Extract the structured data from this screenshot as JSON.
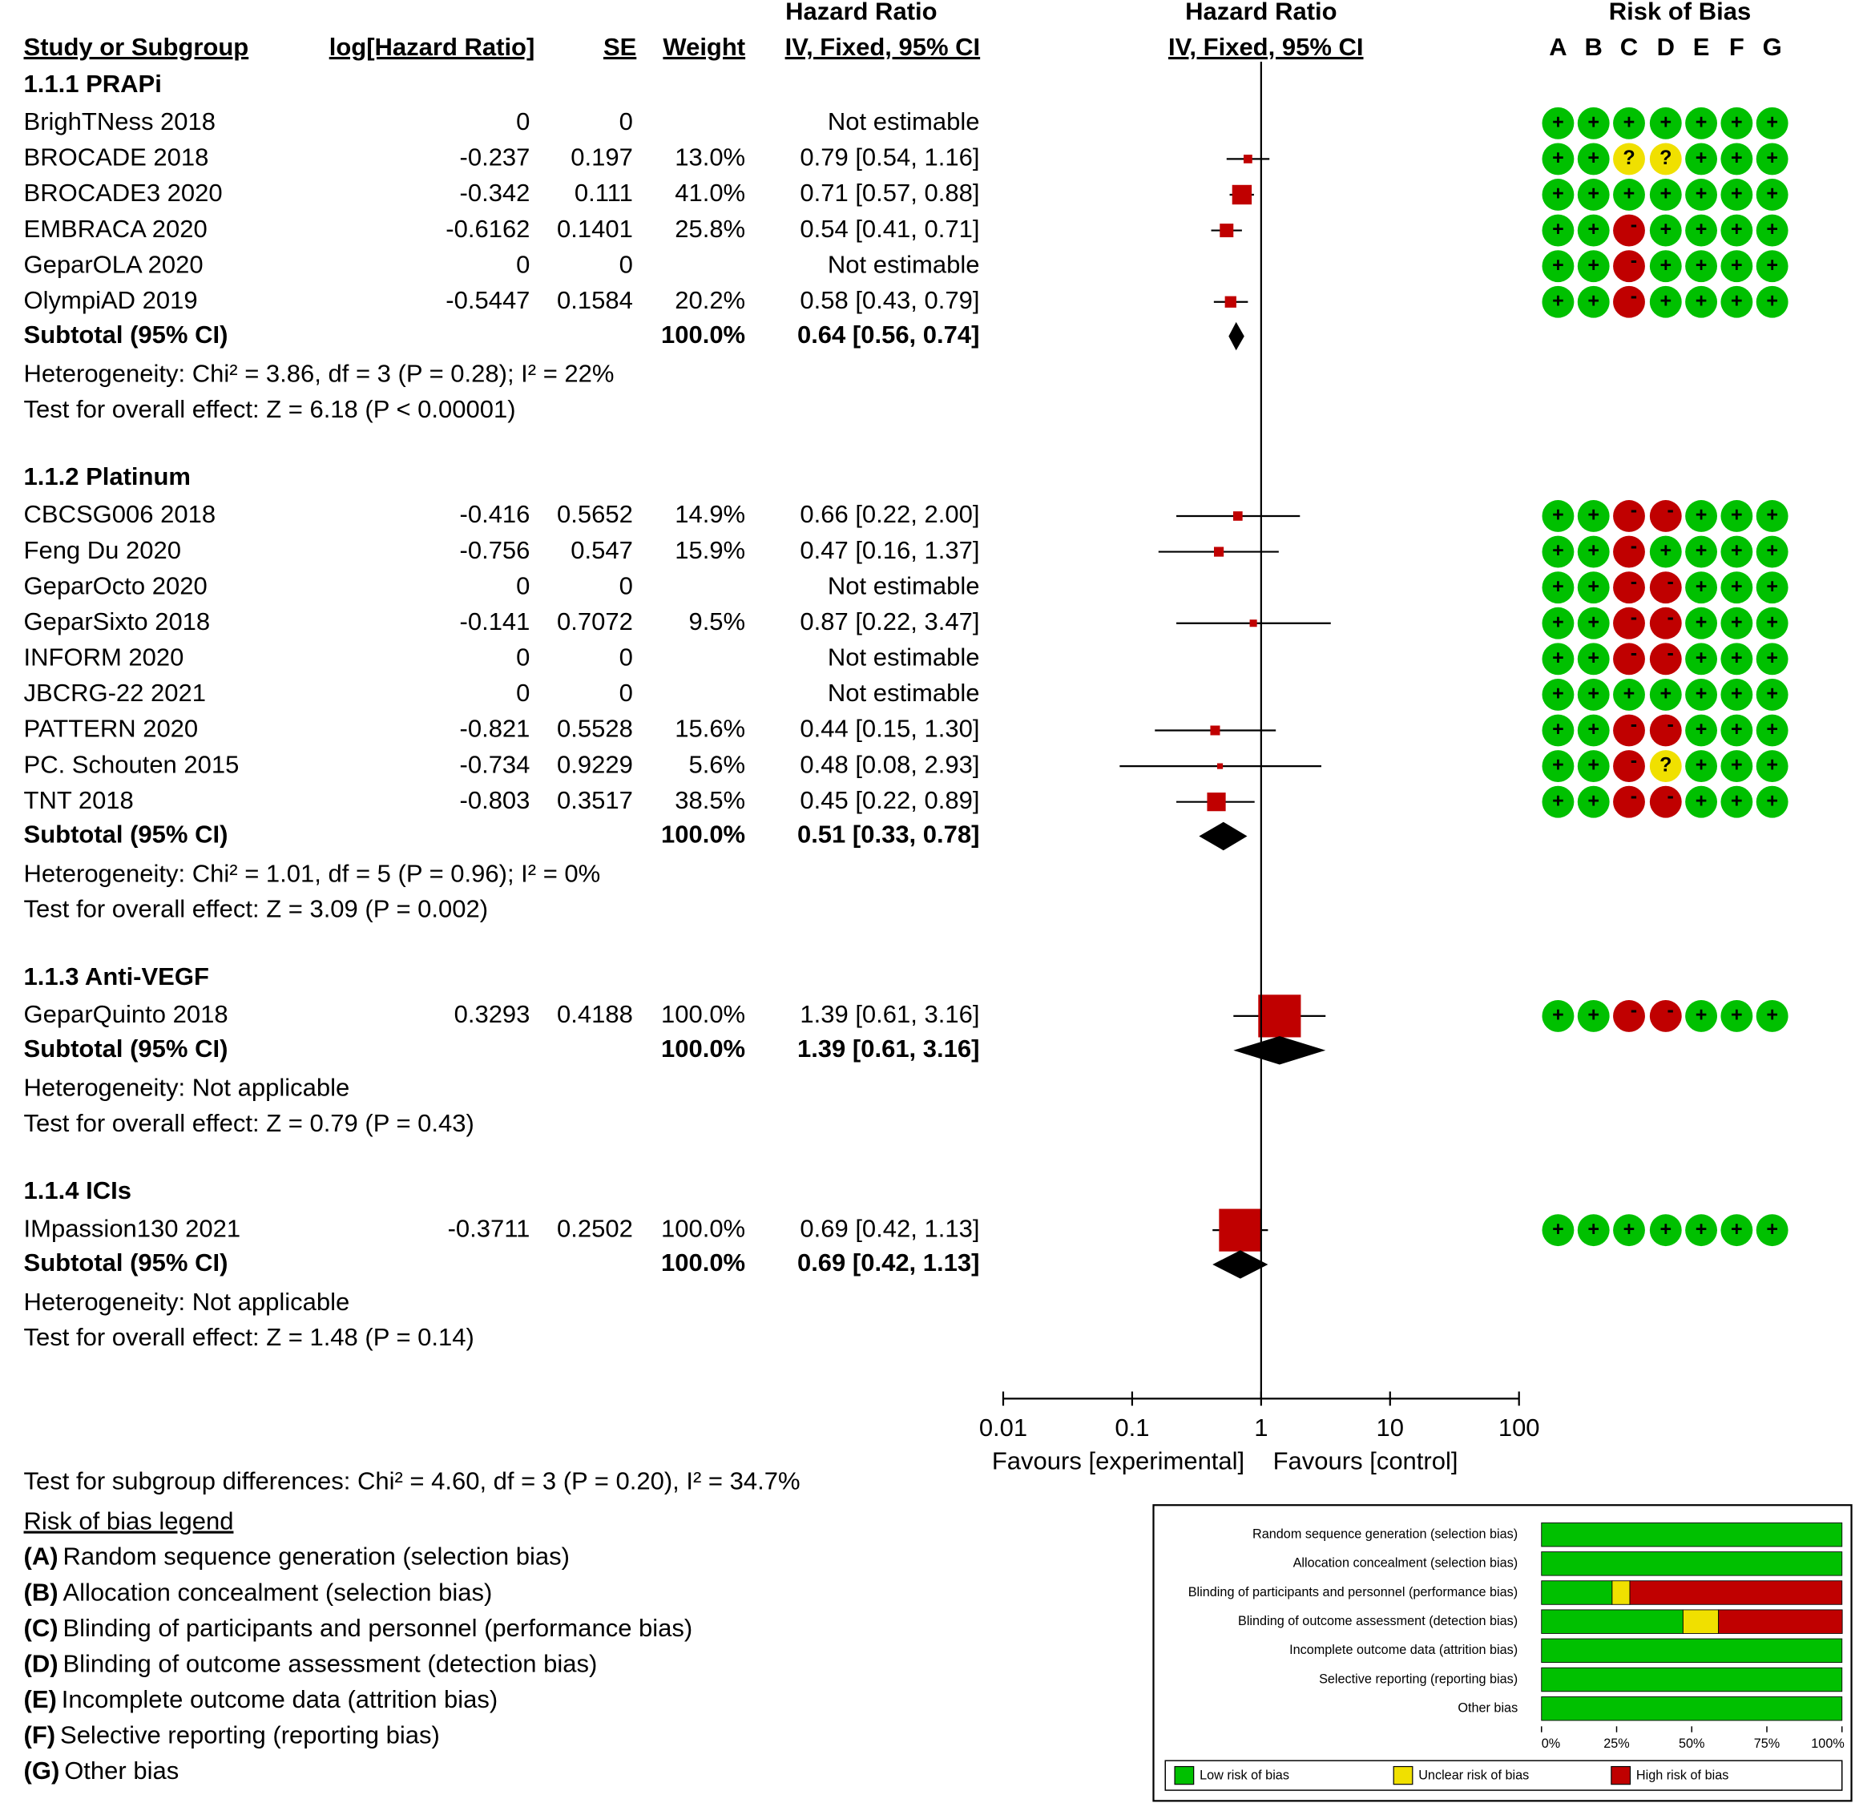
{
  "chart_data": {
    "type": "forest",
    "columns": {
      "study": "Study or Subgroup",
      "log_hr": "log[Hazard Ratio]",
      "se": "SE",
      "weight": "Weight",
      "hr_title": "Hazard Ratio",
      "hr_method": "IV, Fixed, 95% CI",
      "plot_title": "Hazard Ratio",
      "plot_method": "IV, Fixed, 95% CI",
      "bias_title": "Risk of Bias",
      "bias_letters": [
        "A",
        "B",
        "C",
        "D",
        "E",
        "F",
        "G"
      ]
    },
    "xlim": [
      0.01,
      100
    ],
    "xticks": [
      0.01,
      0.1,
      1,
      10,
      100
    ],
    "log_scale": true,
    "favours_left": "Favours [experimental]",
    "favours_right": "Favours [control]",
    "marker_color": "#c00000",
    "bias_colors": {
      "+": "#00c000",
      "?": "#f0e000",
      "-": "#c00000"
    },
    "subgroups": [
      {
        "title": "1.1.1 PRAPi",
        "studies": [
          {
            "name": "BrighTNess 2018",
            "log_hr": 0,
            "se": 0,
            "weight": null,
            "weight_label": null,
            "ci_text": "Not estimable",
            "est": null,
            "lo": null,
            "hi": null,
            "bias": [
              "+",
              "+",
              "+",
              "+",
              "+",
              "+",
              "+"
            ]
          },
          {
            "name": "BROCADE 2018",
            "log_hr": -0.237,
            "se": 0.197,
            "weight": 13.0,
            "weight_label": "13.0%",
            "ci_text": "0.79 [0.54, 1.16]",
            "est": 0.79,
            "lo": 0.54,
            "hi": 1.16,
            "bias": [
              "+",
              "+",
              "?",
              "?",
              "+",
              "+",
              "+"
            ]
          },
          {
            "name": "BROCADE3 2020",
            "log_hr": -0.342,
            "se": 0.111,
            "weight": 41.0,
            "weight_label": "41.0%",
            "ci_text": "0.71 [0.57, 0.88]",
            "est": 0.71,
            "lo": 0.57,
            "hi": 0.88,
            "bias": [
              "+",
              "+",
              "+",
              "+",
              "+",
              "+",
              "+"
            ]
          },
          {
            "name": "EMBRACA 2020",
            "log_hr": -0.6162,
            "se": 0.1401,
            "weight": 25.8,
            "weight_label": "25.8%",
            "ci_text": "0.54 [0.41, 0.71]",
            "est": 0.54,
            "lo": 0.41,
            "hi": 0.71,
            "bias": [
              "+",
              "+",
              "-",
              "+",
              "+",
              "+",
              "+"
            ]
          },
          {
            "name": "GeparOLA 2020",
            "log_hr": 0,
            "se": 0,
            "weight": null,
            "weight_label": null,
            "ci_text": "Not estimable",
            "est": null,
            "lo": null,
            "hi": null,
            "bias": [
              "+",
              "+",
              "-",
              "+",
              "+",
              "+",
              "+"
            ]
          },
          {
            "name": "OlympiAD 2019",
            "log_hr": -0.5447,
            "se": 0.1584,
            "weight": 20.2,
            "weight_label": "20.2%",
            "ci_text": "0.58 [0.43, 0.79]",
            "est": 0.58,
            "lo": 0.43,
            "hi": 0.79,
            "bias": [
              "+",
              "+",
              "-",
              "+",
              "+",
              "+",
              "+"
            ]
          }
        ],
        "subtotal": {
          "label": "Subtotal (95% CI)",
          "weight": "100.0%",
          "ci_text": "0.64 [0.56, 0.74]",
          "est": 0.64,
          "lo": 0.56,
          "hi": 0.74
        },
        "heterogeneity": "Heterogeneity: Chi² = 3.86, df = 3 (P = 0.28); I² = 22%",
        "overall_effect": "Test for overall effect: Z = 6.18 (P < 0.00001)"
      },
      {
        "title": "1.1.2 Platinum",
        "studies": [
          {
            "name": "CBCSG006 2018",
            "log_hr": -0.416,
            "se": 0.5652,
            "weight": 14.9,
            "weight_label": "14.9%",
            "ci_text": "0.66 [0.22, 2.00]",
            "est": 0.66,
            "lo": 0.22,
            "hi": 2.0,
            "bias": [
              "+",
              "+",
              "-",
              "-",
              "+",
              "+",
              "+"
            ]
          },
          {
            "name": "Feng Du 2020",
            "log_hr": -0.756,
            "se": 0.547,
            "weight": 15.9,
            "weight_label": "15.9%",
            "ci_text": "0.47 [0.16, 1.37]",
            "est": 0.47,
            "lo": 0.16,
            "hi": 1.37,
            "bias": [
              "+",
              "+",
              "-",
              "+",
              "+",
              "+",
              "+"
            ]
          },
          {
            "name": "GeparOcto 2020",
            "log_hr": 0,
            "se": 0,
            "weight": null,
            "weight_label": null,
            "ci_text": "Not estimable",
            "est": null,
            "lo": null,
            "hi": null,
            "bias": [
              "+",
              "+",
              "-",
              "-",
              "+",
              "+",
              "+"
            ]
          },
          {
            "name": "GeparSixto 2018",
            "log_hr": -0.141,
            "se": 0.7072,
            "weight": 9.5,
            "weight_label": "9.5%",
            "ci_text": "0.87 [0.22, 3.47]",
            "est": 0.87,
            "lo": 0.22,
            "hi": 3.47,
            "bias": [
              "+",
              "+",
              "-",
              "-",
              "+",
              "+",
              "+"
            ]
          },
          {
            "name": "INFORM 2020",
            "log_hr": 0,
            "se": 0,
            "weight": null,
            "weight_label": null,
            "ci_text": "Not estimable",
            "est": null,
            "lo": null,
            "hi": null,
            "bias": [
              "+",
              "+",
              "-",
              "-",
              "+",
              "+",
              "+"
            ]
          },
          {
            "name": "JBCRG-22 2021",
            "log_hr": 0,
            "se": 0,
            "weight": null,
            "weight_label": null,
            "ci_text": "Not estimable",
            "est": null,
            "lo": null,
            "hi": null,
            "bias": [
              "+",
              "+",
              "+",
              "+",
              "+",
              "+",
              "+"
            ]
          },
          {
            "name": "PATTERN 2020",
            "log_hr": -0.821,
            "se": 0.5528,
            "weight": 15.6,
            "weight_label": "15.6%",
            "ci_text": "0.44 [0.15, 1.30]",
            "est": 0.44,
            "lo": 0.15,
            "hi": 1.3,
            "bias": [
              "+",
              "+",
              "-",
              "-",
              "+",
              "+",
              "+"
            ]
          },
          {
            "name": "PC. Schouten 2015",
            "log_hr": -0.734,
            "se": 0.9229,
            "weight": 5.6,
            "weight_label": "5.6%",
            "ci_text": "0.48 [0.08, 2.93]",
            "est": 0.48,
            "lo": 0.08,
            "hi": 2.93,
            "bias": [
              "+",
              "+",
              "-",
              "?",
              "+",
              "+",
              "+"
            ]
          },
          {
            "name": "TNT 2018",
            "log_hr": -0.803,
            "se": 0.3517,
            "weight": 38.5,
            "weight_label": "38.5%",
            "ci_text": "0.45 [0.22, 0.89]",
            "est": 0.45,
            "lo": 0.22,
            "hi": 0.89,
            "bias": [
              "+",
              "+",
              "-",
              "-",
              "+",
              "+",
              "+"
            ]
          }
        ],
        "subtotal": {
          "label": "Subtotal (95% CI)",
          "weight": "100.0%",
          "ci_text": "0.51 [0.33, 0.78]",
          "est": 0.51,
          "lo": 0.33,
          "hi": 0.78
        },
        "heterogeneity": "Heterogeneity: Chi² = 1.01, df = 5 (P = 0.96); I² = 0%",
        "overall_effect": "Test for overall effect: Z = 3.09 (P = 0.002)"
      },
      {
        "title": "1.1.3 Anti-VEGF",
        "studies": [
          {
            "name": "GeparQuinto 2018",
            "log_hr": 0.3293,
            "se": 0.4188,
            "weight": 100.0,
            "weight_label": "100.0%",
            "ci_text": "1.39 [0.61, 3.16]",
            "est": 1.39,
            "lo": 0.61,
            "hi": 3.16,
            "bias": [
              "+",
              "+",
              "-",
              "-",
              "+",
              "+",
              "+"
            ]
          }
        ],
        "subtotal": {
          "label": "Subtotal (95% CI)",
          "weight": "100.0%",
          "ci_text": "1.39 [0.61, 3.16]",
          "est": 1.39,
          "lo": 0.61,
          "hi": 3.16
        },
        "heterogeneity": "Heterogeneity: Not applicable",
        "overall_effect": "Test for overall effect: Z = 0.79 (P = 0.43)"
      },
      {
        "title": "1.1.4 ICIs",
        "studies": [
          {
            "name": "IMpassion130 2021",
            "log_hr": -0.3711,
            "se": 0.2502,
            "weight": 100.0,
            "weight_label": "100.0%",
            "ci_text": "0.69 [0.42, 1.13]",
            "est": 0.69,
            "lo": 0.42,
            "hi": 1.13,
            "bias": [
              "+",
              "+",
              "+",
              "+",
              "+",
              "+",
              "+"
            ]
          }
        ],
        "subtotal": {
          "label": "Subtotal (95% CI)",
          "weight": "100.0%",
          "ci_text": "0.69 [0.42, 1.13]",
          "est": 0.69,
          "lo": 0.42,
          "hi": 1.13
        },
        "heterogeneity": "Heterogeneity: Not applicable",
        "overall_effect": "Test for overall effect: Z = 1.48 (P = 0.14)"
      }
    ],
    "subgroup_test": "Test for subgroup differences: Chi² = 4.60, df = 3 (P = 0.20), I² = 34.7%",
    "bias_legend": {
      "title": "Risk of bias legend",
      "items": [
        {
          "letter": "(A)",
          "text": "Random sequence generation (selection bias)"
        },
        {
          "letter": "(B)",
          "text": "Allocation concealment (selection bias)"
        },
        {
          "letter": "(C)",
          "text": "Blinding of participants and personnel (performance bias)"
        },
        {
          "letter": "(D)",
          "text": "Blinding of outcome assessment (detection bias)"
        },
        {
          "letter": "(E)",
          "text": "Incomplete outcome data (attrition bias)"
        },
        {
          "letter": "(F)",
          "text": "Selective reporting (reporting bias)"
        },
        {
          "letter": "(G)",
          "text": "Other bias"
        }
      ]
    },
    "summary": {
      "domains": [
        "Random sequence generation (selection bias)",
        "Allocation concealment (selection bias)",
        "Blinding of participants and personnel (performance bias)",
        "Blinding of outcome assessment (detection bias)",
        "Incomplete outcome data (attrition bias)",
        "Selective reporting (reporting bias)",
        "Other bias"
      ],
      "series": [
        {
          "name": "Low risk of bias",
          "color": "#00c000",
          "values": [
            100,
            100,
            23.5,
            47.1,
            100,
            100,
            100
          ]
        },
        {
          "name": "Unclear risk of bias",
          "color": "#f0e000",
          "values": [
            0,
            0,
            5.9,
            11.8,
            0,
            0,
            0
          ]
        },
        {
          "name": "High risk of bias",
          "color": "#c00000",
          "values": [
            0,
            0,
            70.6,
            41.2,
            0,
            0,
            0
          ]
        }
      ],
      "xlim": [
        0,
        100
      ],
      "xticks": [
        {
          "value": 0,
          "label": "0%"
        },
        {
          "value": 25,
          "label": "25%"
        },
        {
          "value": 50,
          "label": "50%"
        },
        {
          "value": 75,
          "label": "75%"
        },
        {
          "value": 100,
          "label": "100%"
        }
      ]
    }
  }
}
